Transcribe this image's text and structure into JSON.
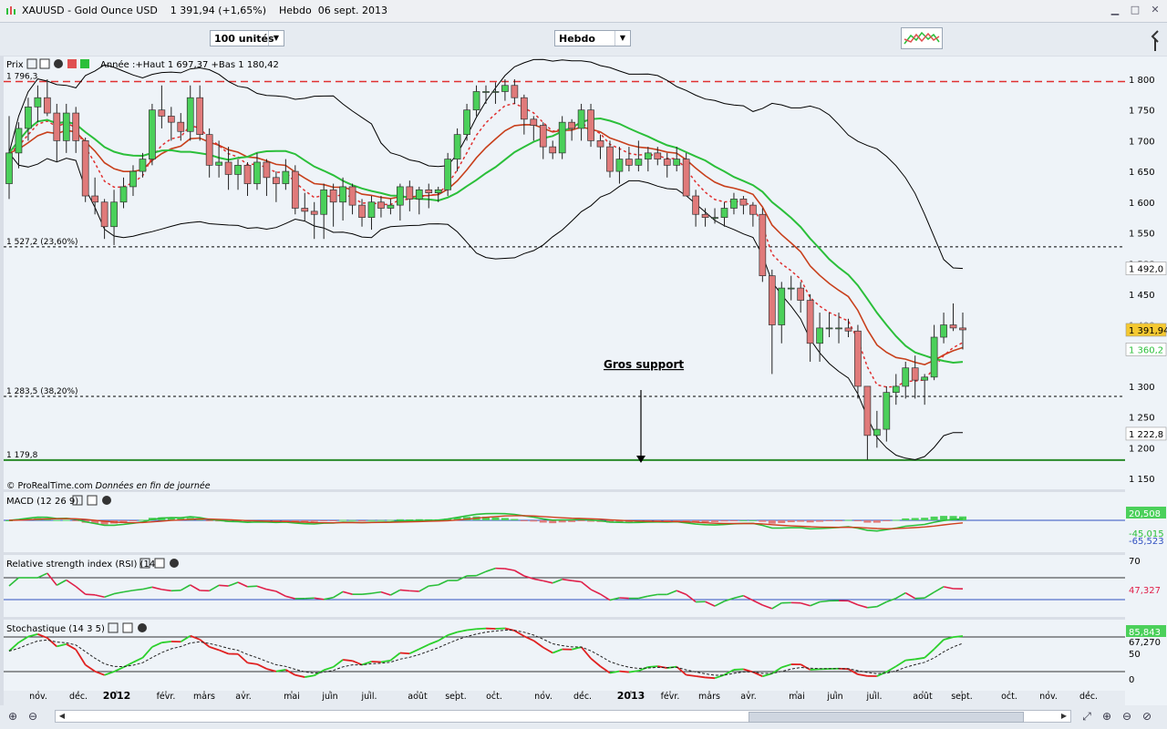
{
  "window": {
    "title": "XAUUSD - Gold Ounce USD    1 391,94 (+1,65%)    Hebdo  06 sept. 2013"
  },
  "toolbar": {
    "units_select": "100 unités",
    "period_select": "Hebdo"
  },
  "price_panel": {
    "header_label": "Prix",
    "header_info": "Année :+Haut 1 697,37 +Bas 1 180,42",
    "source_text": "© ProRealTime.com",
    "source_note": "Données en fin de journée",
    "level_labels": [
      "1 796,3",
      "1 527,2 (23,60%)",
      "1 283,5 (38,20%)",
      "1 179,8"
    ],
    "annotation": "Gros support",
    "right_axis_ticks": [
      "1 800",
      "1 750",
      "1 700",
      "1 650",
      "1 600",
      "1 550",
      "1 450",
      "1 300",
      "1 250",
      "1 200",
      "1 150"
    ],
    "right_axis_partial": [
      "1 500",
      "1 400"
    ],
    "value_tags": {
      "upper_band": "1 492,0",
      "price": "1 391,94",
      "ma": "1 360,2",
      "lower_band": "1 222,8"
    }
  },
  "macd_panel": {
    "label": "MACD (12 26 9)",
    "value_tags": [
      "20,508",
      "-45,015",
      "-65,523"
    ]
  },
  "rsi_panel": {
    "label": "Relative strength index (RSI) (14)",
    "axis_top": "70",
    "value_tag": "47,327"
  },
  "stoch_panel": {
    "label": "Stochastique (14 3 5)",
    "axis_ticks": [
      "50",
      "0"
    ],
    "value_tags": [
      "85,843",
      "67,270"
    ]
  },
  "x_axis": {
    "labels": [
      "nov.",
      "déc.",
      "2012",
      "févr.",
      "mars",
      "avr.",
      "mai",
      "juin",
      "juil.",
      "août",
      "sept.",
      "oct.",
      "nov.",
      "déc.",
      "2013",
      "févr.",
      "mars",
      "avr.",
      "mai",
      "juin",
      "juil.",
      "août",
      "sept.",
      "oct.",
      "nov.",
      "déc."
    ],
    "bold": [
      "2012",
      "2013"
    ]
  },
  "chart_data": {
    "type": "candlestick",
    "instrument": "XAUUSD - Gold Ounce USD",
    "period": "Hebdo",
    "ylim": [
      1150,
      1825
    ],
    "levels": [
      {
        "label": "1 796,3",
        "value": 1796.3,
        "style": "dashed",
        "color": "#e03030"
      },
      {
        "label": "1 527,2 (23,60%)",
        "value": 1527.2,
        "style": "dashed",
        "color": "#000000"
      },
      {
        "label": "1 283,5 (38,20%)",
        "value": 1283.5,
        "style": "dashed",
        "color": "#000000"
      },
      {
        "label": "1 179,8",
        "value": 1179.8,
        "style": "solid",
        "color": "#2a8a2a"
      }
    ],
    "candles_ohlc": [
      [
        1630,
        1740,
        1605,
        1680
      ],
      [
        1680,
        1730,
        1655,
        1720
      ],
      [
        1720,
        1770,
        1700,
        1755
      ],
      [
        1755,
        1790,
        1730,
        1770
      ],
      [
        1770,
        1800,
        1740,
        1745
      ],
      [
        1745,
        1760,
        1665,
        1700
      ],
      [
        1700,
        1760,
        1680,
        1745
      ],
      [
        1745,
        1755,
        1680,
        1700
      ],
      [
        1700,
        1705,
        1600,
        1610
      ],
      [
        1610,
        1640,
        1580,
        1600
      ],
      [
        1600,
        1605,
        1540,
        1560
      ],
      [
        1560,
        1620,
        1530,
        1600
      ],
      [
        1600,
        1640,
        1590,
        1625
      ],
      [
        1625,
        1660,
        1610,
        1650
      ],
      [
        1650,
        1680,
        1640,
        1670
      ],
      [
        1670,
        1760,
        1660,
        1750
      ],
      [
        1750,
        1790,
        1720,
        1740
      ],
      [
        1740,
        1755,
        1700,
        1730
      ],
      [
        1730,
        1745,
        1700,
        1715
      ],
      [
        1715,
        1790,
        1700,
        1770
      ],
      [
        1770,
        1790,
        1700,
        1710
      ],
      [
        1710,
        1720,
        1640,
        1660
      ],
      [
        1660,
        1700,
        1640,
        1665
      ],
      [
        1665,
        1690,
        1620,
        1645
      ],
      [
        1645,
        1670,
        1620,
        1660
      ],
      [
        1660,
        1665,
        1610,
        1630
      ],
      [
        1630,
        1680,
        1620,
        1665
      ],
      [
        1665,
        1670,
        1610,
        1640
      ],
      [
        1640,
        1650,
        1600,
        1630
      ],
      [
        1630,
        1670,
        1620,
        1650
      ],
      [
        1650,
        1660,
        1580,
        1590
      ],
      [
        1590,
        1615,
        1570,
        1585
      ],
      [
        1585,
        1600,
        1540,
        1580
      ],
      [
        1580,
        1630,
        1540,
        1620
      ],
      [
        1620,
        1630,
        1560,
        1600
      ],
      [
        1600,
        1640,
        1570,
        1625
      ],
      [
        1625,
        1630,
        1580,
        1595
      ],
      [
        1595,
        1605,
        1560,
        1575
      ],
      [
        1575,
        1610,
        1555,
        1600
      ],
      [
        1600,
        1610,
        1575,
        1590
      ],
      [
        1590,
        1605,
        1580,
        1595
      ],
      [
        1595,
        1630,
        1570,
        1625
      ],
      [
        1625,
        1635,
        1585,
        1605
      ],
      [
        1605,
        1625,
        1580,
        1620
      ],
      [
        1620,
        1630,
        1590,
        1615
      ],
      [
        1615,
        1625,
        1600,
        1620
      ],
      [
        1620,
        1680,
        1610,
        1670
      ],
      [
        1670,
        1720,
        1650,
        1710
      ],
      [
        1710,
        1760,
        1700,
        1750
      ],
      [
        1750,
        1790,
        1740,
        1780
      ],
      [
        1780,
        1790,
        1760,
        1780
      ],
      [
        1780,
        1795,
        1760,
        1780
      ],
      [
        1780,
        1800,
        1765,
        1790
      ],
      [
        1790,
        1800,
        1760,
        1770
      ],
      [
        1770,
        1775,
        1710,
        1735
      ],
      [
        1735,
        1740,
        1700,
        1725
      ],
      [
        1725,
        1730,
        1670,
        1690
      ],
      [
        1690,
        1700,
        1670,
        1680
      ],
      [
        1680,
        1740,
        1670,
        1730
      ],
      [
        1730,
        1735,
        1700,
        1720
      ],
      [
        1720,
        1760,
        1700,
        1750
      ],
      [
        1750,
        1760,
        1690,
        1700
      ],
      [
        1700,
        1710,
        1670,
        1690
      ],
      [
        1690,
        1700,
        1640,
        1650
      ],
      [
        1650,
        1690,
        1630,
        1670
      ],
      [
        1670,
        1690,
        1650,
        1660
      ],
      [
        1660,
        1700,
        1650,
        1670
      ],
      [
        1670,
        1690,
        1650,
        1680
      ],
      [
        1680,
        1690,
        1660,
        1670
      ],
      [
        1670,
        1680,
        1640,
        1660
      ],
      [
        1660,
        1690,
        1650,
        1670
      ],
      [
        1670,
        1680,
        1610,
        1610
      ],
      [
        1610,
        1620,
        1560,
        1580
      ],
      [
        1580,
        1590,
        1560,
        1575
      ],
      [
        1575,
        1590,
        1565,
        1575
      ],
      [
        1575,
        1600,
        1560,
        1590
      ],
      [
        1590,
        1615,
        1580,
        1605
      ],
      [
        1605,
        1610,
        1580,
        1595
      ],
      [
        1595,
        1600,
        1560,
        1580
      ],
      [
        1580,
        1590,
        1470,
        1480
      ],
      [
        1480,
        1490,
        1320,
        1400
      ],
      [
        1400,
        1470,
        1370,
        1460
      ],
      [
        1460,
        1480,
        1440,
        1460
      ],
      [
        1460,
        1470,
        1420,
        1440
      ],
      [
        1440,
        1450,
        1340,
        1370
      ],
      [
        1370,
        1420,
        1340,
        1395
      ],
      [
        1395,
        1420,
        1380,
        1395
      ],
      [
        1395,
        1420,
        1370,
        1395
      ],
      [
        1395,
        1410,
        1380,
        1390
      ],
      [
        1390,
        1400,
        1280,
        1300
      ],
      [
        1300,
        1300,
        1180,
        1220
      ],
      [
        1220,
        1260,
        1200,
        1230
      ],
      [
        1230,
        1300,
        1210,
        1290
      ],
      [
        1290,
        1320,
        1270,
        1300
      ],
      [
        1300,
        1340,
        1280,
        1330
      ],
      [
        1330,
        1350,
        1280,
        1310
      ],
      [
        1310,
        1320,
        1270,
        1315
      ],
      [
        1315,
        1400,
        1310,
        1380
      ],
      [
        1380,
        1420,
        1370,
        1400
      ],
      [
        1400,
        1435,
        1390,
        1395
      ],
      [
        1395,
        1420,
        1360,
        1391.94
      ]
    ],
    "overlays": {
      "ma_red": {
        "last": 1360.2
      },
      "ma_dotted": {
        "color": "#e03030"
      },
      "ma_green": {
        "color": "#2bbf3a"
      },
      "bollinger_upper": {
        "last": 1492.0
      },
      "bollinger_lower": {
        "last": 1222.8
      }
    },
    "macd": {
      "values": [
        20.508,
        -45.015,
        -65.523
      ]
    },
    "rsi": {
      "last": 47.327,
      "levels": [
        70,
        30
      ]
    },
    "stochastic": {
      "values": [
        85.843,
        67.27
      ],
      "levels": [
        80,
        20
      ]
    }
  }
}
